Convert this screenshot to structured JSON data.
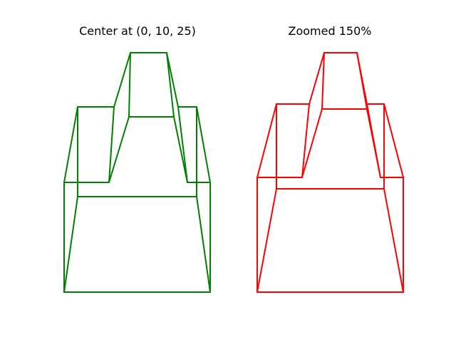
{
  "panels": [
    {
      "title": "Center at (0, 10, 25)",
      "color": "#008000",
      "edges": [
        [
          [
            90,
            410
          ],
          [
            295,
            410
          ]
        ],
        [
          [
            90,
            410
          ],
          [
            90,
            256
          ]
        ],
        [
          [
            295,
            410
          ],
          [
            295,
            256
          ]
        ],
        [
          [
            90,
            256
          ],
          [
            153,
            256
          ]
        ],
        [
          [
            263,
            256
          ],
          [
            295,
            256
          ]
        ],
        [
          [
            90,
            410
          ],
          [
            109,
            276
          ]
        ],
        [
          [
            295,
            410
          ],
          [
            276,
            276
          ]
        ],
        [
          [
            109,
            276
          ],
          [
            276,
            276
          ]
        ],
        [
          [
            109,
            276
          ],
          [
            109,
            150
          ]
        ],
        [
          [
            276,
            276
          ],
          [
            276,
            150
          ]
        ],
        [
          [
            90,
            256
          ],
          [
            109,
            150
          ]
        ],
        [
          [
            295,
            256
          ],
          [
            276,
            150
          ]
        ],
        [
          [
            109,
            150
          ],
          [
            160,
            150
          ]
        ],
        [
          [
            250,
            150
          ],
          [
            276,
            150
          ]
        ],
        [
          [
            153,
            256
          ],
          [
            181,
            164
          ]
        ],
        [
          [
            263,
            256
          ],
          [
            244,
            164
          ]
        ],
        [
          [
            181,
            164
          ],
          [
            244,
            164
          ]
        ],
        [
          [
            153,
            256
          ],
          [
            160,
            150
          ]
        ],
        [
          [
            263,
            256
          ],
          [
            250,
            150
          ]
        ],
        [
          [
            160,
            150
          ],
          [
            183,
            74
          ]
        ],
        [
          [
            250,
            150
          ],
          [
            234,
            74
          ]
        ],
        [
          [
            181,
            164
          ],
          [
            183,
            74
          ]
        ],
        [
          [
            244,
            164
          ],
          [
            234,
            74
          ]
        ],
        [
          [
            183,
            74
          ],
          [
            234,
            74
          ]
        ]
      ]
    },
    {
      "title": "Zoomed 150%",
      "color": "#ff0000",
      "edges": [
        [
          [
            361,
            410
          ],
          [
            566,
            410
          ]
        ],
        [
          [
            361,
            410
          ],
          [
            361,
            249
          ]
        ],
        [
          [
            566,
            410
          ],
          [
            566,
            249
          ]
        ],
        [
          [
            361,
            249
          ],
          [
            424,
            249
          ]
        ],
        [
          [
            534,
            249
          ],
          [
            566,
            249
          ]
        ],
        [
          [
            361,
            410
          ],
          [
            388,
            265
          ]
        ],
        [
          [
            566,
            410
          ],
          [
            539,
            265
          ]
        ],
        [
          [
            388,
            265
          ],
          [
            539,
            265
          ]
        ],
        [
          [
            388,
            265
          ],
          [
            388,
            146
          ]
        ],
        [
          [
            539,
            265
          ],
          [
            539,
            146
          ]
        ],
        [
          [
            361,
            249
          ],
          [
            388,
            146
          ]
        ],
        [
          [
            566,
            249
          ],
          [
            539,
            146
          ]
        ],
        [
          [
            388,
            146
          ],
          [
            434,
            146
          ]
        ],
        [
          [
            515,
            146
          ],
          [
            539,
            146
          ]
        ],
        [
          [
            424,
            249
          ],
          [
            452,
            153
          ]
        ],
        [
          [
            534,
            249
          ],
          [
            515,
            153
          ]
        ],
        [
          [
            452,
            153
          ],
          [
            515,
            153
          ]
        ],
        [
          [
            424,
            249
          ],
          [
            434,
            146
          ]
        ],
        [
          [
            534,
            249
          ],
          [
            515,
            146
          ]
        ],
        [
          [
            434,
            146
          ],
          [
            455,
            74
          ]
        ],
        [
          [
            515,
            146
          ],
          [
            501,
            74
          ]
        ],
        [
          [
            452,
            153
          ],
          [
            455,
            74
          ]
        ],
        [
          [
            515,
            153
          ],
          [
            501,
            74
          ]
        ],
        [
          [
            455,
            74
          ],
          [
            501,
            74
          ]
        ]
      ]
    }
  ]
}
